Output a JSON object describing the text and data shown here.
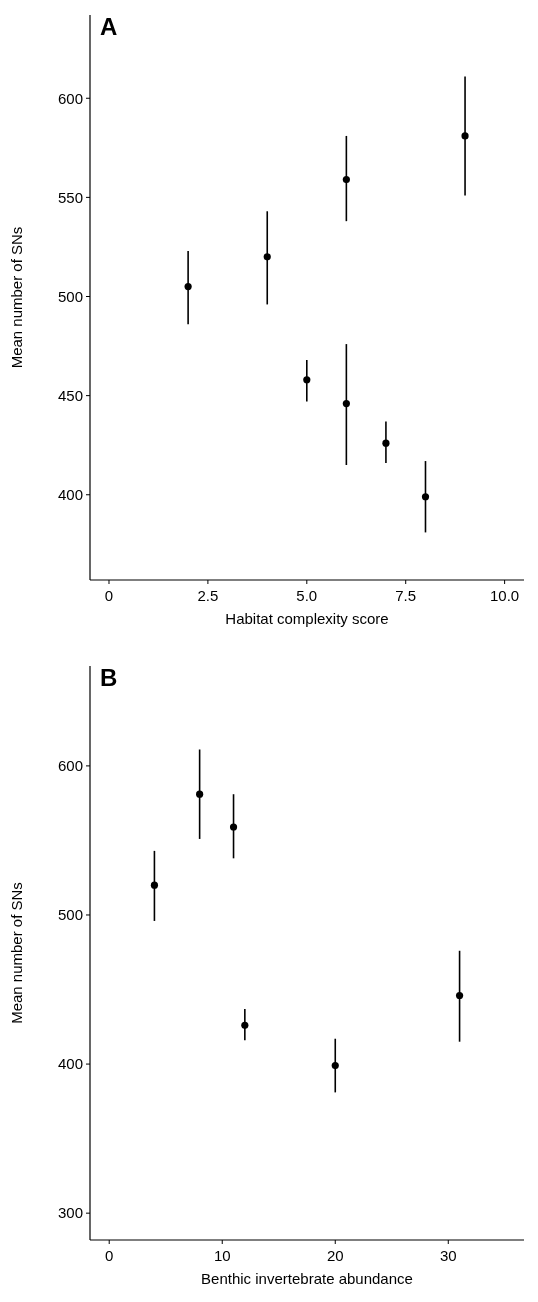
{
  "chart_data": [
    {
      "type": "scatter",
      "title": "A",
      "xlabel": "Habitat complexity score",
      "ylabel": "Mean number of SNs",
      "xlim": [
        -0.48,
        10.49
      ],
      "ylim": [
        357,
        642
      ],
      "xticks": [
        0,
        2.5,
        {
          "value": 5,
          "label": "5.0"
        },
        7.5,
        {
          "value": 10,
          "label": "10.0"
        }
      ],
      "yticks": [
        400,
        450,
        500,
        550,
        600
      ],
      "marker": "circle",
      "series": [
        {
          "color": "#000000",
          "x": [
            2,
            4,
            5,
            6,
            6,
            7,
            8,
            9
          ],
          "values": [
            505,
            520,
            458,
            559,
            446,
            426,
            399,
            581
          ],
          "errors": [
            [
              486,
              523
            ],
            [
              496,
              543
            ],
            [
              447,
              468
            ],
            [
              538,
              581
            ],
            [
              415,
              476
            ],
            [
              416,
              437
            ],
            [
              381,
              417
            ],
            [
              551,
              611
            ]
          ]
        }
      ]
    },
    {
      "type": "scatter",
      "title": "B",
      "xlabel": "Benthic invertebrate abundance",
      "ylabel": "Mean number of SNs",
      "xlim": [
        -1.7,
        36.7
      ],
      "ylim": [
        282,
        667
      ],
      "xticks": [
        0,
        10,
        20,
        30
      ],
      "yticks": [
        300,
        400,
        500,
        600
      ],
      "marker": "circle",
      "series": [
        {
          "color": "#000000",
          "x": [
            4,
            8,
            11,
            12,
            20,
            31
          ],
          "values": [
            520,
            581,
            559,
            426,
            399,
            446
          ],
          "errors": [
            [
              496,
              543
            ],
            [
              551,
              611
            ],
            [
              538,
              581
            ],
            [
              416,
              437
            ],
            [
              381,
              417
            ],
            [
              415,
              476
            ]
          ]
        }
      ]
    }
  ]
}
